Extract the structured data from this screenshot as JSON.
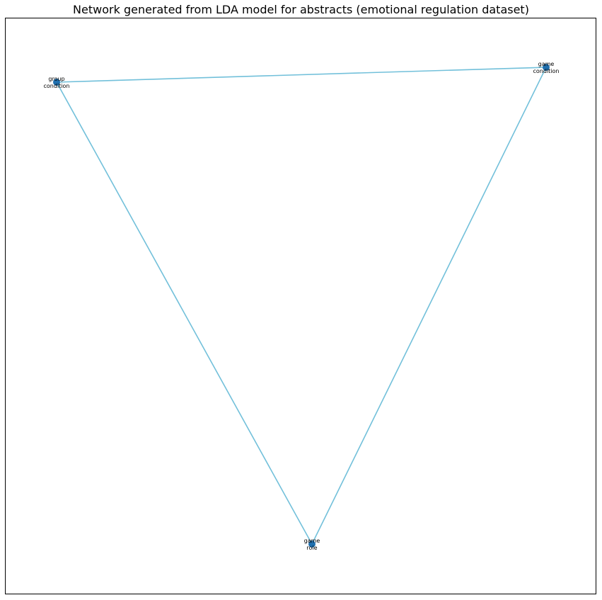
{
  "title": "Network generated from LDA model for abstracts (emotional regulation dataset)",
  "colors": {
    "edge": "#72c0da",
    "node": "#1f6fae",
    "background": "#ffffff",
    "frame": "#000000"
  },
  "nodes": [
    {
      "id": "group_condition",
      "label_line1": "group",
      "label_line2": "condition"
    },
    {
      "id": "game_condition",
      "label_line1": "game",
      "label_line2": "condition"
    },
    {
      "id": "game_role",
      "label_line1": "game",
      "label_line2": "role"
    }
  ],
  "edges": [
    {
      "source": "group_condition",
      "target": "game_condition"
    },
    {
      "source": "group_condition",
      "target": "game_role"
    },
    {
      "source": "game_condition",
      "target": "game_role"
    }
  ]
}
